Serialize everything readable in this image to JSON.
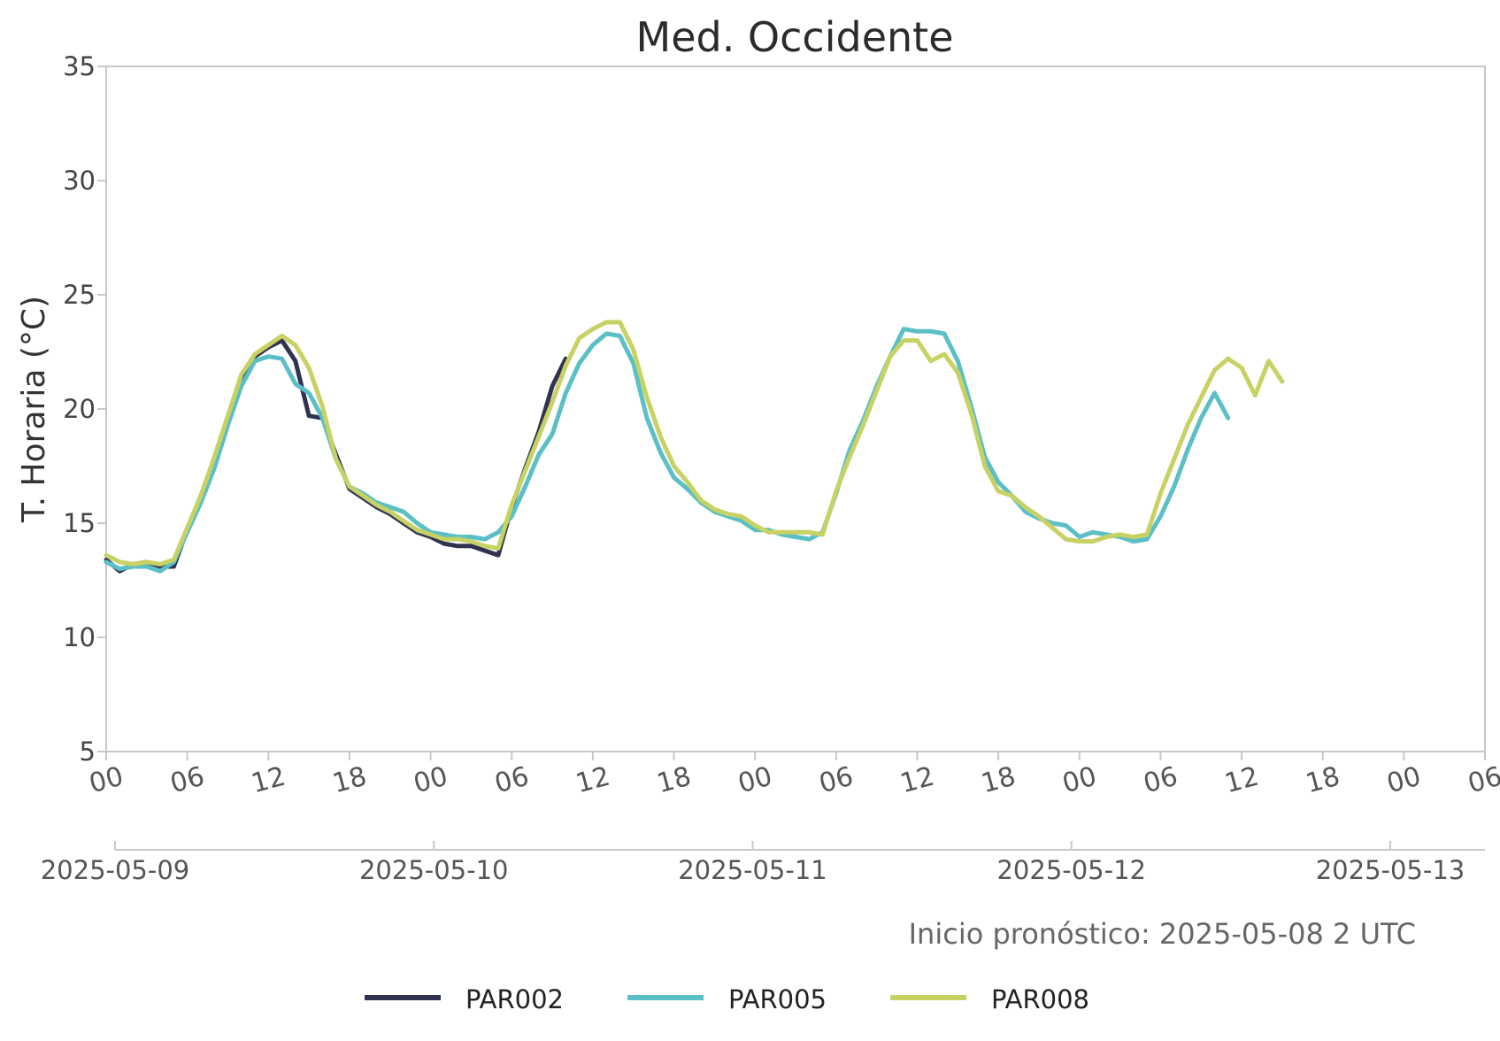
{
  "chart_data": {
    "type": "line",
    "title": "Med. Occidente",
    "ylabel": "T. Horaria (°C)",
    "xlabel": "",
    "ylim": [
      5,
      35
    ],
    "yticks": [
      "5",
      "10",
      "15",
      "20",
      "25",
      "30",
      "35"
    ],
    "xlim": [
      "2025-05-09 00:00",
      "2025-05-13 06:00"
    ],
    "hour_tick_labels": [
      "00",
      "06",
      "12",
      "18",
      "00",
      "06",
      "12",
      "18",
      "00",
      "06",
      "12",
      "18",
      "00",
      "06",
      "12",
      "18",
      "00",
      "06"
    ],
    "date_tick_labels": [
      "2025-05-09",
      "2025-05-10",
      "2025-05-11",
      "2025-05-12",
      "2025-05-13"
    ],
    "note": "Inicio pronóstico: 2025-05-08 2 UTC",
    "grid": false,
    "legend_position": "bottom-center",
    "start_time": "2025-05-09 00:00",
    "time_step_hours": 1,
    "series": [
      {
        "name": "PAR002",
        "color": "#2f3350",
        "values": [
          13.4,
          12.9,
          13.2,
          13.3,
          13.1,
          13.1,
          14.7,
          16.0,
          17.6,
          19.5,
          21.3,
          22.3,
          22.7,
          23.0,
          22.1,
          19.7,
          19.6,
          18.0,
          16.5,
          16.1,
          15.7,
          15.4,
          15.0,
          14.6,
          14.4,
          14.1,
          14.0,
          14.0,
          13.8,
          13.6,
          15.7,
          17.4,
          19.0,
          21.0,
          22.2,
          null,
          null,
          null,
          null,
          null,
          null,
          null,
          null,
          null,
          null,
          null,
          null,
          null,
          null,
          null,
          null,
          null,
          null,
          null,
          null,
          null,
          null,
          null,
          null,
          null,
          null,
          null,
          null,
          null,
          null,
          null,
          null,
          null,
          null,
          null,
          null,
          null,
          null,
          null,
          null,
          null,
          null,
          null,
          null,
          null,
          null,
          null,
          null,
          null,
          null,
          null,
          null,
          null,
          null,
          null
        ]
      },
      {
        "name": "PAR005",
        "color": "#5bbfc7",
        "values": [
          13.3,
          13.0,
          13.1,
          13.1,
          12.9,
          13.3,
          14.6,
          15.9,
          17.4,
          19.3,
          21.0,
          22.1,
          22.3,
          22.2,
          21.1,
          20.7,
          19.6,
          17.8,
          16.6,
          16.3,
          15.9,
          15.7,
          15.5,
          15.0,
          14.6,
          14.5,
          14.4,
          14.4,
          14.3,
          14.6,
          15.3,
          16.6,
          18.0,
          18.9,
          20.7,
          22.0,
          22.8,
          23.3,
          23.2,
          22.0,
          19.6,
          18.1,
          17.0,
          16.5,
          15.9,
          15.5,
          15.3,
          15.1,
          14.7,
          14.7,
          14.5,
          14.4,
          14.3,
          14.6,
          16.3,
          18.2,
          19.5,
          21.0,
          22.3,
          23.5,
          23.4,
          23.4,
          23.3,
          22.1,
          20.1,
          17.9,
          16.8,
          16.2,
          15.5,
          15.2,
          15.0,
          14.9,
          14.4,
          14.6,
          14.5,
          14.4,
          14.2,
          14.3,
          15.3,
          16.6,
          18.2,
          19.6,
          20.7,
          19.6,
          null,
          null,
          null,
          null,
          null,
          null
        ]
      },
      {
        "name": "PAR008",
        "color": "#c8d163",
        "values": [
          13.6,
          13.3,
          13.2,
          13.3,
          13.2,
          13.4,
          14.8,
          16.2,
          17.9,
          19.7,
          21.5,
          22.4,
          22.8,
          23.2,
          22.8,
          21.8,
          20.1,
          17.8,
          16.6,
          16.2,
          15.8,
          15.5,
          15.1,
          14.7,
          14.5,
          14.3,
          14.3,
          14.2,
          14.0,
          13.9,
          15.8,
          17.3,
          18.8,
          20.3,
          21.9,
          23.1,
          23.5,
          23.8,
          23.8,
          22.6,
          20.5,
          18.8,
          17.5,
          16.8,
          16.0,
          15.6,
          15.4,
          15.3,
          14.9,
          14.6,
          14.6,
          14.6,
          14.6,
          14.5,
          16.4,
          17.9,
          19.3,
          20.8,
          22.3,
          23.0,
          23.0,
          22.1,
          22.4,
          21.6,
          19.8,
          17.5,
          16.4,
          16.2,
          15.7,
          15.3,
          14.8,
          14.3,
          14.2,
          14.2,
          14.4,
          14.5,
          14.4,
          14.5,
          16.3,
          17.8,
          19.3,
          20.5,
          21.7,
          22.2,
          21.8,
          20.6,
          22.1,
          21.2
        ]
      }
    ]
  }
}
